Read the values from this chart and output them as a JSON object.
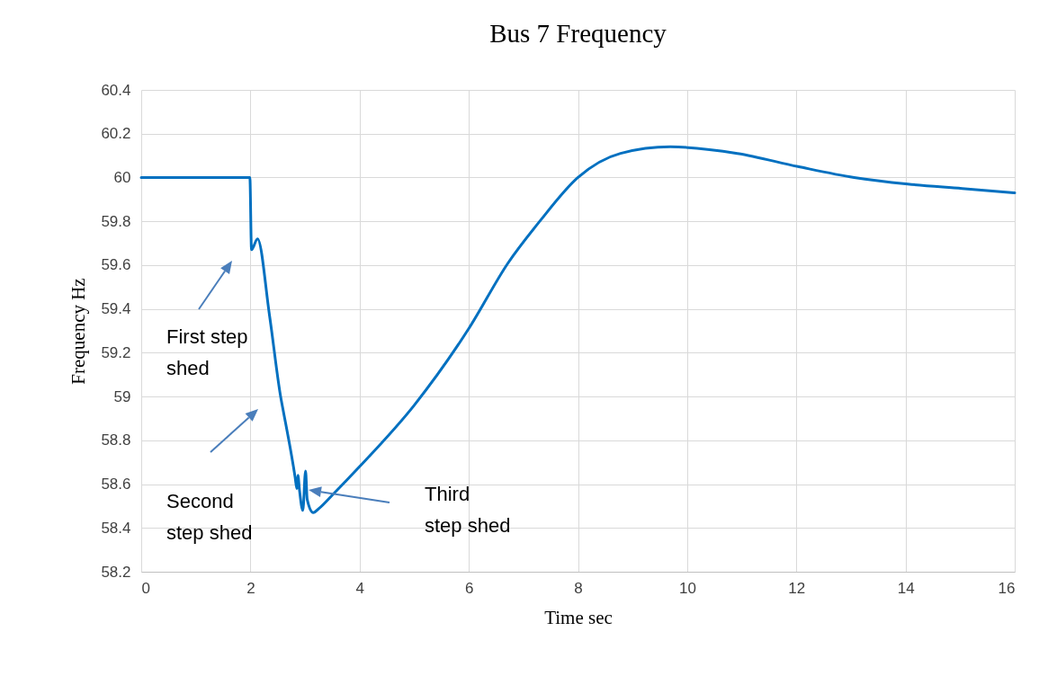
{
  "chart_data": {
    "type": "line",
    "title": "Bus 7 Frequency",
    "xlabel": "Time sec",
    "ylabel": "Frequency Hz",
    "series": [
      {
        "color": "#0070c0",
        "x": [
          0,
          1.99,
          2.02,
          2.13,
          2.35,
          2.56,
          2.59,
          2.82,
          2.85,
          2.87,
          2.9,
          2.96,
          3.01,
          3.04,
          3.15,
          3.26,
          3.5,
          4,
          5,
          6,
          6.72,
          7.3,
          8,
          8.78,
          9.69,
          10.92,
          12.03,
          13.06,
          14.04,
          15.04,
          16
        ],
        "values": [
          60,
          60,
          59.67,
          59.72,
          59.37,
          58.99,
          58.95,
          58.63,
          58.58,
          58.64,
          58.57,
          58.48,
          58.66,
          58.53,
          58.47,
          58.49,
          58.55,
          58.68,
          58.96,
          59.31,
          59.61,
          59.8,
          60.0,
          60.11,
          60.14,
          60.11,
          60.05,
          60.0,
          59.97,
          59.95,
          59.93
        ]
      }
    ],
    "xlim": [
      0,
      16
    ],
    "xticks": [
      0,
      2,
      4,
      6,
      8,
      10,
      12,
      14,
      16
    ],
    "ylim": [
      58.2,
      60.4
    ],
    "yticks": [
      58.2,
      58.4,
      58.6,
      58.8,
      59,
      59.2,
      59.4,
      59.6,
      59.8,
      60,
      60.2,
      60.4
    ],
    "grid": true,
    "annotations": [
      "First step\nshed",
      "Second\nstep shed",
      "Third\nstep shed"
    ]
  }
}
